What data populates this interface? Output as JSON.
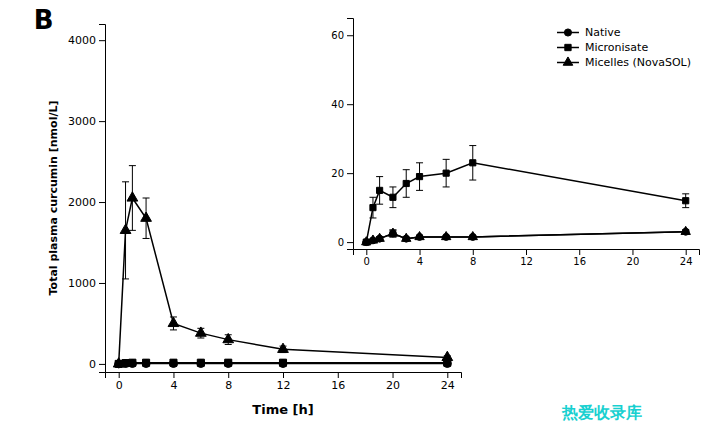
{
  "chart_data": [
    {
      "type": "line",
      "title": "B",
      "x_label": "Time [h]",
      "y_label": "Total plasma curcumin [nmol/L]",
      "x": [
        0,
        0.5,
        1,
        2,
        4,
        6,
        8,
        12,
        24
      ],
      "series": [
        {
          "color": "#000000",
          "marker": "triangle",
          "values": [
            0,
            1650,
            2050,
            1800,
            500,
            380,
            300,
            180,
            80
          ],
          "errors": [
            0,
            600,
            400,
            250,
            80,
            60,
            60,
            40,
            20
          ]
        },
        {
          "color": "#000000",
          "marker": "circle",
          "values": [
            0,
            5,
            5,
            5,
            5,
            5,
            5,
            5,
            5
          ],
          "errors": [
            0,
            2,
            2,
            2,
            2,
            2,
            2,
            2,
            2
          ]
        },
        {
          "color": "#000000",
          "marker": "square",
          "values": [
            0,
            10,
            15,
            15,
            15,
            15,
            15,
            15,
            15
          ],
          "errors": [
            0,
            5,
            5,
            5,
            5,
            5,
            5,
            5,
            5
          ]
        }
      ],
      "xlim": [
        -1,
        25
      ],
      "xticks": [
        0,
        4,
        8,
        12,
        16,
        20,
        24
      ],
      "ylim": [
        -100,
        4200
      ],
      "yticks": [
        0,
        1000,
        2000,
        3000,
        4000
      ],
      "grid": false,
      "annotations": [
        {
          "text": "热爱收录库",
          "color": "#00cccc"
        }
      ]
    },
    {
      "type": "line",
      "x": [
        0,
        0.5,
        1,
        2,
        3,
        4,
        6,
        8,
        24
      ],
      "series": [
        {
          "name": "Native",
          "color": "#000000",
          "marker": "circle",
          "values": [
            0,
            0.5,
            1.0,
            2.5,
            1.0,
            1.5,
            1.5,
            1.5,
            3.0
          ],
          "errors": [
            0,
            0.3,
            0.5,
            1.0,
            0.3,
            0.4,
            0.3,
            0.3,
            0.5
          ]
        },
        {
          "name": "Micronisate",
          "color": "#000000",
          "marker": "square",
          "values": [
            0,
            10,
            15,
            13,
            17,
            19,
            20,
            23,
            12
          ],
          "errors": [
            0,
            3,
            4,
            3,
            4,
            4,
            4,
            5,
            2
          ]
        },
        {
          "name": "Micelles (NovaSOL)",
          "color": "#000000",
          "marker": "triangle",
          "values": [
            0,
            0.5,
            1.0,
            2.5,
            1.0,
            1.5,
            1.5,
            1.5,
            3.0
          ],
          "errors": [
            0,
            0.3,
            0.5,
            1.0,
            0.3,
            0.4,
            0.3,
            0.3,
            0.5
          ]
        }
      ],
      "xlim": [
        -1,
        25
      ],
      "xticks": [
        0,
        4,
        8,
        12,
        16,
        20,
        24
      ],
      "ylim": [
        -2,
        65
      ],
      "yticks": [
        0,
        20,
        40,
        60
      ],
      "grid": false,
      "legend": "upper right"
    }
  ]
}
